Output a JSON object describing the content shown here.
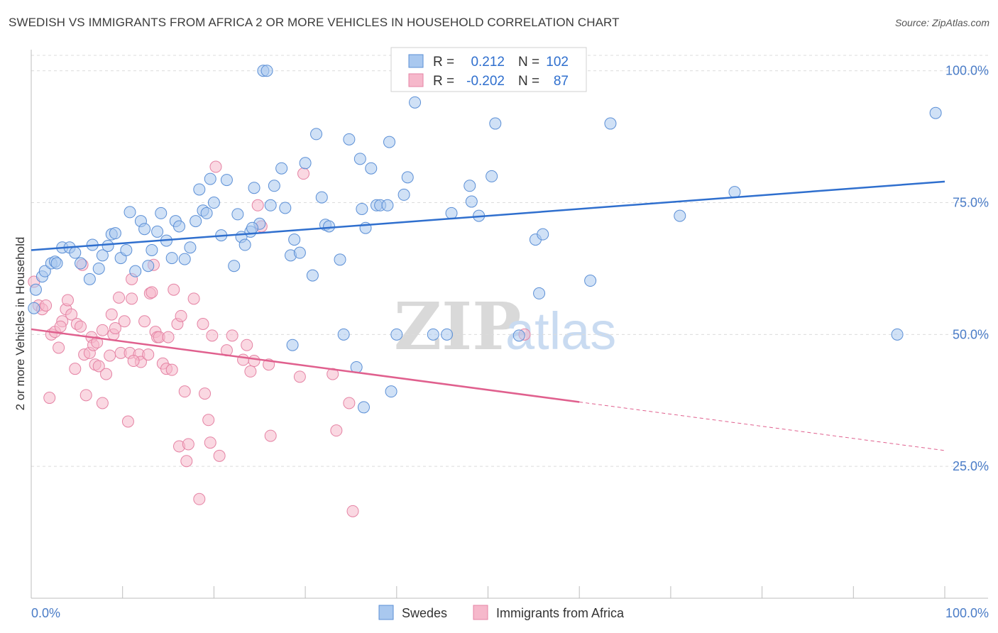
{
  "title": "SWEDISH VS IMMIGRANTS FROM AFRICA 2 OR MORE VEHICLES IN HOUSEHOLD CORRELATION CHART",
  "source": "Source: ZipAtlas.com",
  "watermark": {
    "zip": "ZIP",
    "atlas": "atlas"
  },
  "legend": {
    "r_label": "R =",
    "n_label": "N =",
    "rows": [
      {
        "r": "0.212",
        "n": "102"
      },
      {
        "r": "-0.202",
        "n": "87"
      }
    ]
  },
  "colors": {
    "swedes_fill": "#a9c8ef",
    "swedes_stroke": "#5b8fd6",
    "swedes_line": "#2f6fce",
    "africa_fill": "#f6b8cb",
    "africa_stroke": "#e583a4",
    "africa_line": "#e0608e"
  },
  "chart_data": {
    "type": "scatter",
    "title": "SWEDISH VS IMMIGRANTS FROM AFRICA 2 OR MORE VEHICLES IN HOUSEHOLD CORRELATION CHART",
    "xlabel": "",
    "ylabel": "2 or more Vehicles in Household",
    "xlim": [
      0,
      100
    ],
    "ylim": [
      0,
      104
    ],
    "x_tick_labels": [
      "0.0%",
      "100.0%"
    ],
    "y_ticks": [
      25,
      50,
      75,
      100
    ],
    "y_tick_labels": [
      "25.0%",
      "50.0%",
      "75.0%",
      "100.0%"
    ],
    "grid": true,
    "legend_position": "bottom",
    "series": [
      {
        "name": "Swedes",
        "r": 0.212,
        "n": 102,
        "trend": {
          "x": [
            0,
            100
          ],
          "y": [
            66.0,
            79.0
          ],
          "dashed_from": null
        },
        "points": [
          [
            0.3,
            55.0
          ],
          [
            0.5,
            58.5
          ],
          [
            1.2,
            61.0
          ],
          [
            1.5,
            62.0
          ],
          [
            2.2,
            63.5
          ],
          [
            2.6,
            63.8
          ],
          [
            2.8,
            63.5
          ],
          [
            3.4,
            66.5
          ],
          [
            4.2,
            66.5
          ],
          [
            4.8,
            65.5
          ],
          [
            5.4,
            63.5
          ],
          [
            6.4,
            60.5
          ],
          [
            6.7,
            67.0
          ],
          [
            7.4,
            62.5
          ],
          [
            7.8,
            65.0
          ],
          [
            8.4,
            66.8
          ],
          [
            8.8,
            69.0
          ],
          [
            9.2,
            69.2
          ],
          [
            9.8,
            64.5
          ],
          [
            10.4,
            66.0
          ],
          [
            10.8,
            73.2
          ],
          [
            11.4,
            62.0
          ],
          [
            12.0,
            71.5
          ],
          [
            12.4,
            70.0
          ],
          [
            12.8,
            63.0
          ],
          [
            13.2,
            66.0
          ],
          [
            13.8,
            69.5
          ],
          [
            14.2,
            73.0
          ],
          [
            14.8,
            67.8
          ],
          [
            15.4,
            64.5
          ],
          [
            15.8,
            71.5
          ],
          [
            16.2,
            70.5
          ],
          [
            16.8,
            64.3
          ],
          [
            17.4,
            66.5
          ],
          [
            18.0,
            71.5
          ],
          [
            18.4,
            77.5
          ],
          [
            18.8,
            73.5
          ],
          [
            19.2,
            73.0
          ],
          [
            19.6,
            79.5
          ],
          [
            20.0,
            75.0
          ],
          [
            20.8,
            68.8
          ],
          [
            21.4,
            79.3
          ],
          [
            22.2,
            63.0
          ],
          [
            22.6,
            72.8
          ],
          [
            23.0,
            68.5
          ],
          [
            23.4,
            67.0
          ],
          [
            24.0,
            69.5
          ],
          [
            24.4,
            77.8
          ],
          [
            25.0,
            71.0
          ],
          [
            25.4,
            100.0
          ],
          [
            25.8,
            100.0
          ],
          [
            26.2,
            74.5
          ],
          [
            26.6,
            78.2
          ],
          [
            27.4,
            81.5
          ],
          [
            27.8,
            74.0
          ],
          [
            28.4,
            65.0
          ],
          [
            28.8,
            68.0
          ],
          [
            29.4,
            65.5
          ],
          [
            30.0,
            82.5
          ],
          [
            30.8,
            61.2
          ],
          [
            31.2,
            88.0
          ],
          [
            31.8,
            76.0
          ],
          [
            32.2,
            70.8
          ],
          [
            32.6,
            70.5
          ],
          [
            33.8,
            64.2
          ],
          [
            34.2,
            50.0
          ],
          [
            34.8,
            87.0
          ],
          [
            35.6,
            43.8
          ],
          [
            36.0,
            83.3
          ],
          [
            36.2,
            73.8
          ],
          [
            36.6,
            70.2
          ],
          [
            37.2,
            81.5
          ],
          [
            37.8,
            74.5
          ],
          [
            38.2,
            74.5
          ],
          [
            39.0,
            74.5
          ],
          [
            39.2,
            86.5
          ],
          [
            40.0,
            50.0
          ],
          [
            40.8,
            76.5
          ],
          [
            41.2,
            79.8
          ],
          [
            42.0,
            94.0
          ],
          [
            44.0,
            50.0
          ],
          [
            45.5,
            50.0
          ],
          [
            46.0,
            73.0
          ],
          [
            48.0,
            78.2
          ],
          [
            48.2,
            75.2
          ],
          [
            49.0,
            72.5
          ],
          [
            50.4,
            80.0
          ],
          [
            50.8,
            90.0
          ],
          [
            53.4,
            49.8
          ],
          [
            55.2,
            68.0
          ],
          [
            55.6,
            57.8
          ],
          [
            56.0,
            69.0
          ],
          [
            61.2,
            60.2
          ],
          [
            63.4,
            90.0
          ],
          [
            71.0,
            72.5
          ],
          [
            77.0,
            77.0
          ],
          [
            94.8,
            50.0
          ],
          [
            99.0,
            92.0
          ],
          [
            36.4,
            36.2
          ],
          [
            39.4,
            39.2
          ],
          [
            28.6,
            48.0
          ],
          [
            24.2,
            70.2
          ]
        ]
      },
      {
        "name": "Immigrants from Africa",
        "r": -0.202,
        "n": 87,
        "trend": {
          "x": [
            0,
            100
          ],
          "y": [
            51.0,
            28.0
          ],
          "dashed_from": 60
        },
        "points": [
          [
            0.3,
            60.0
          ],
          [
            0.8,
            55.5
          ],
          [
            1.2,
            54.8
          ],
          [
            1.6,
            55.5
          ],
          [
            2.2,
            50.0
          ],
          [
            2.6,
            50.5
          ],
          [
            3.0,
            47.5
          ],
          [
            3.4,
            52.5
          ],
          [
            3.8,
            54.8
          ],
          [
            4.0,
            56.5
          ],
          [
            4.4,
            53.8
          ],
          [
            4.8,
            43.5
          ],
          [
            5.0,
            52.0
          ],
          [
            5.4,
            51.5
          ],
          [
            5.8,
            46.2
          ],
          [
            6.0,
            38.5
          ],
          [
            6.4,
            46.5
          ],
          [
            6.6,
            49.5
          ],
          [
            6.8,
            48.0
          ],
          [
            7.0,
            44.3
          ],
          [
            7.4,
            44.0
          ],
          [
            7.8,
            50.8
          ],
          [
            7.8,
            37.0
          ],
          [
            8.2,
            42.5
          ],
          [
            8.6,
            46.0
          ],
          [
            8.8,
            53.8
          ],
          [
            9.0,
            50.0
          ],
          [
            9.2,
            51.2
          ],
          [
            9.6,
            57.0
          ],
          [
            9.8,
            46.5
          ],
          [
            10.2,
            52.5
          ],
          [
            10.6,
            33.5
          ],
          [
            10.8,
            46.5
          ],
          [
            11.0,
            56.8
          ],
          [
            11.0,
            60.5
          ],
          [
            11.8,
            46.2
          ],
          [
            12.0,
            44.8
          ],
          [
            12.4,
            52.5
          ],
          [
            12.8,
            46.2
          ],
          [
            13.0,
            57.8
          ],
          [
            13.2,
            58.0
          ],
          [
            13.6,
            50.5
          ],
          [
            13.8,
            49.5
          ],
          [
            14.0,
            49.5
          ],
          [
            14.4,
            44.5
          ],
          [
            14.8,
            43.5
          ],
          [
            15.0,
            49.5
          ],
          [
            15.4,
            43.3
          ],
          [
            15.6,
            58.5
          ],
          [
            16.0,
            52.0
          ],
          [
            16.2,
            28.8
          ],
          [
            16.4,
            53.5
          ],
          [
            16.8,
            39.2
          ],
          [
            17.0,
            26.0
          ],
          [
            17.2,
            29.2
          ],
          [
            17.8,
            56.8
          ],
          [
            18.4,
            18.8
          ],
          [
            18.8,
            52.0
          ],
          [
            19.0,
            38.8
          ],
          [
            19.4,
            33.8
          ],
          [
            19.6,
            29.5
          ],
          [
            19.8,
            49.8
          ],
          [
            20.2,
            81.8
          ],
          [
            20.6,
            27.0
          ],
          [
            21.4,
            47.0
          ],
          [
            22.0,
            49.8
          ],
          [
            23.2,
            45.2
          ],
          [
            23.6,
            48.0
          ],
          [
            24.0,
            43.0
          ],
          [
            24.4,
            45.0
          ],
          [
            24.8,
            74.5
          ],
          [
            25.2,
            70.5
          ],
          [
            26.0,
            44.3
          ],
          [
            26.2,
            30.8
          ],
          [
            29.4,
            42.0
          ],
          [
            29.8,
            80.5
          ],
          [
            33.0,
            42.5
          ],
          [
            33.4,
            31.8
          ],
          [
            34.8,
            37.0
          ],
          [
            35.2,
            16.5
          ],
          [
            2.0,
            38.0
          ],
          [
            5.6,
            63.2
          ],
          [
            13.4,
            63.2
          ],
          [
            54.0,
            50.0
          ],
          [
            11.2,
            45.0
          ],
          [
            7.2,
            48.5
          ],
          [
            3.2,
            51.5
          ]
        ]
      }
    ]
  },
  "bottom_legend": [
    "Swedes",
    "Immigrants from Africa"
  ]
}
